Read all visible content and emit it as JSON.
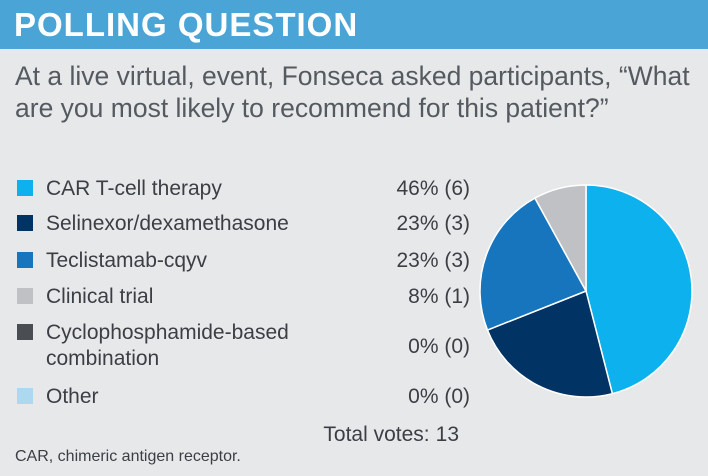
{
  "header": {
    "title": "POLLING QUESTION"
  },
  "intro": {
    "text": "At a live virtual, event, Fonseca asked participants, “What are you most likely to recommend for this patient?”"
  },
  "chart_data": {
    "type": "pie",
    "title": "",
    "slices": [
      {
        "label_lines": [
          "CAR T-cell therapy"
        ],
        "value": 46,
        "votes": 6,
        "display": "46% (6)",
        "color": "#0db1ed"
      },
      {
        "label_lines": [
          "Selinexor/dexamethasone"
        ],
        "value": 23,
        "votes": 3,
        "display": "23% (3)",
        "color": "#013365"
      },
      {
        "label_lines": [
          "Teclistamab-cqyv"
        ],
        "value": 23,
        "votes": 3,
        "display": "23% (3)",
        "color": "#1775be"
      },
      {
        "label_lines": [
          "Clinical trial"
        ],
        "value": 8,
        "votes": 1,
        "display": "8% (1)",
        "color": "#bfc1c4"
      },
      {
        "label_lines": [
          "Cyclophosphamide-based",
          "combination"
        ],
        "value": 0,
        "votes": 0,
        "display": "0% (0)",
        "color": "#4a4d52"
      },
      {
        "label_lines": [
          "Other"
        ],
        "value": 0,
        "votes": 0,
        "display": "0% (0)",
        "color": "#add8ef"
      }
    ]
  },
  "totals": {
    "label": "Total votes:",
    "value": "13"
  },
  "footnote": "CAR, chimeric antigen receptor."
}
